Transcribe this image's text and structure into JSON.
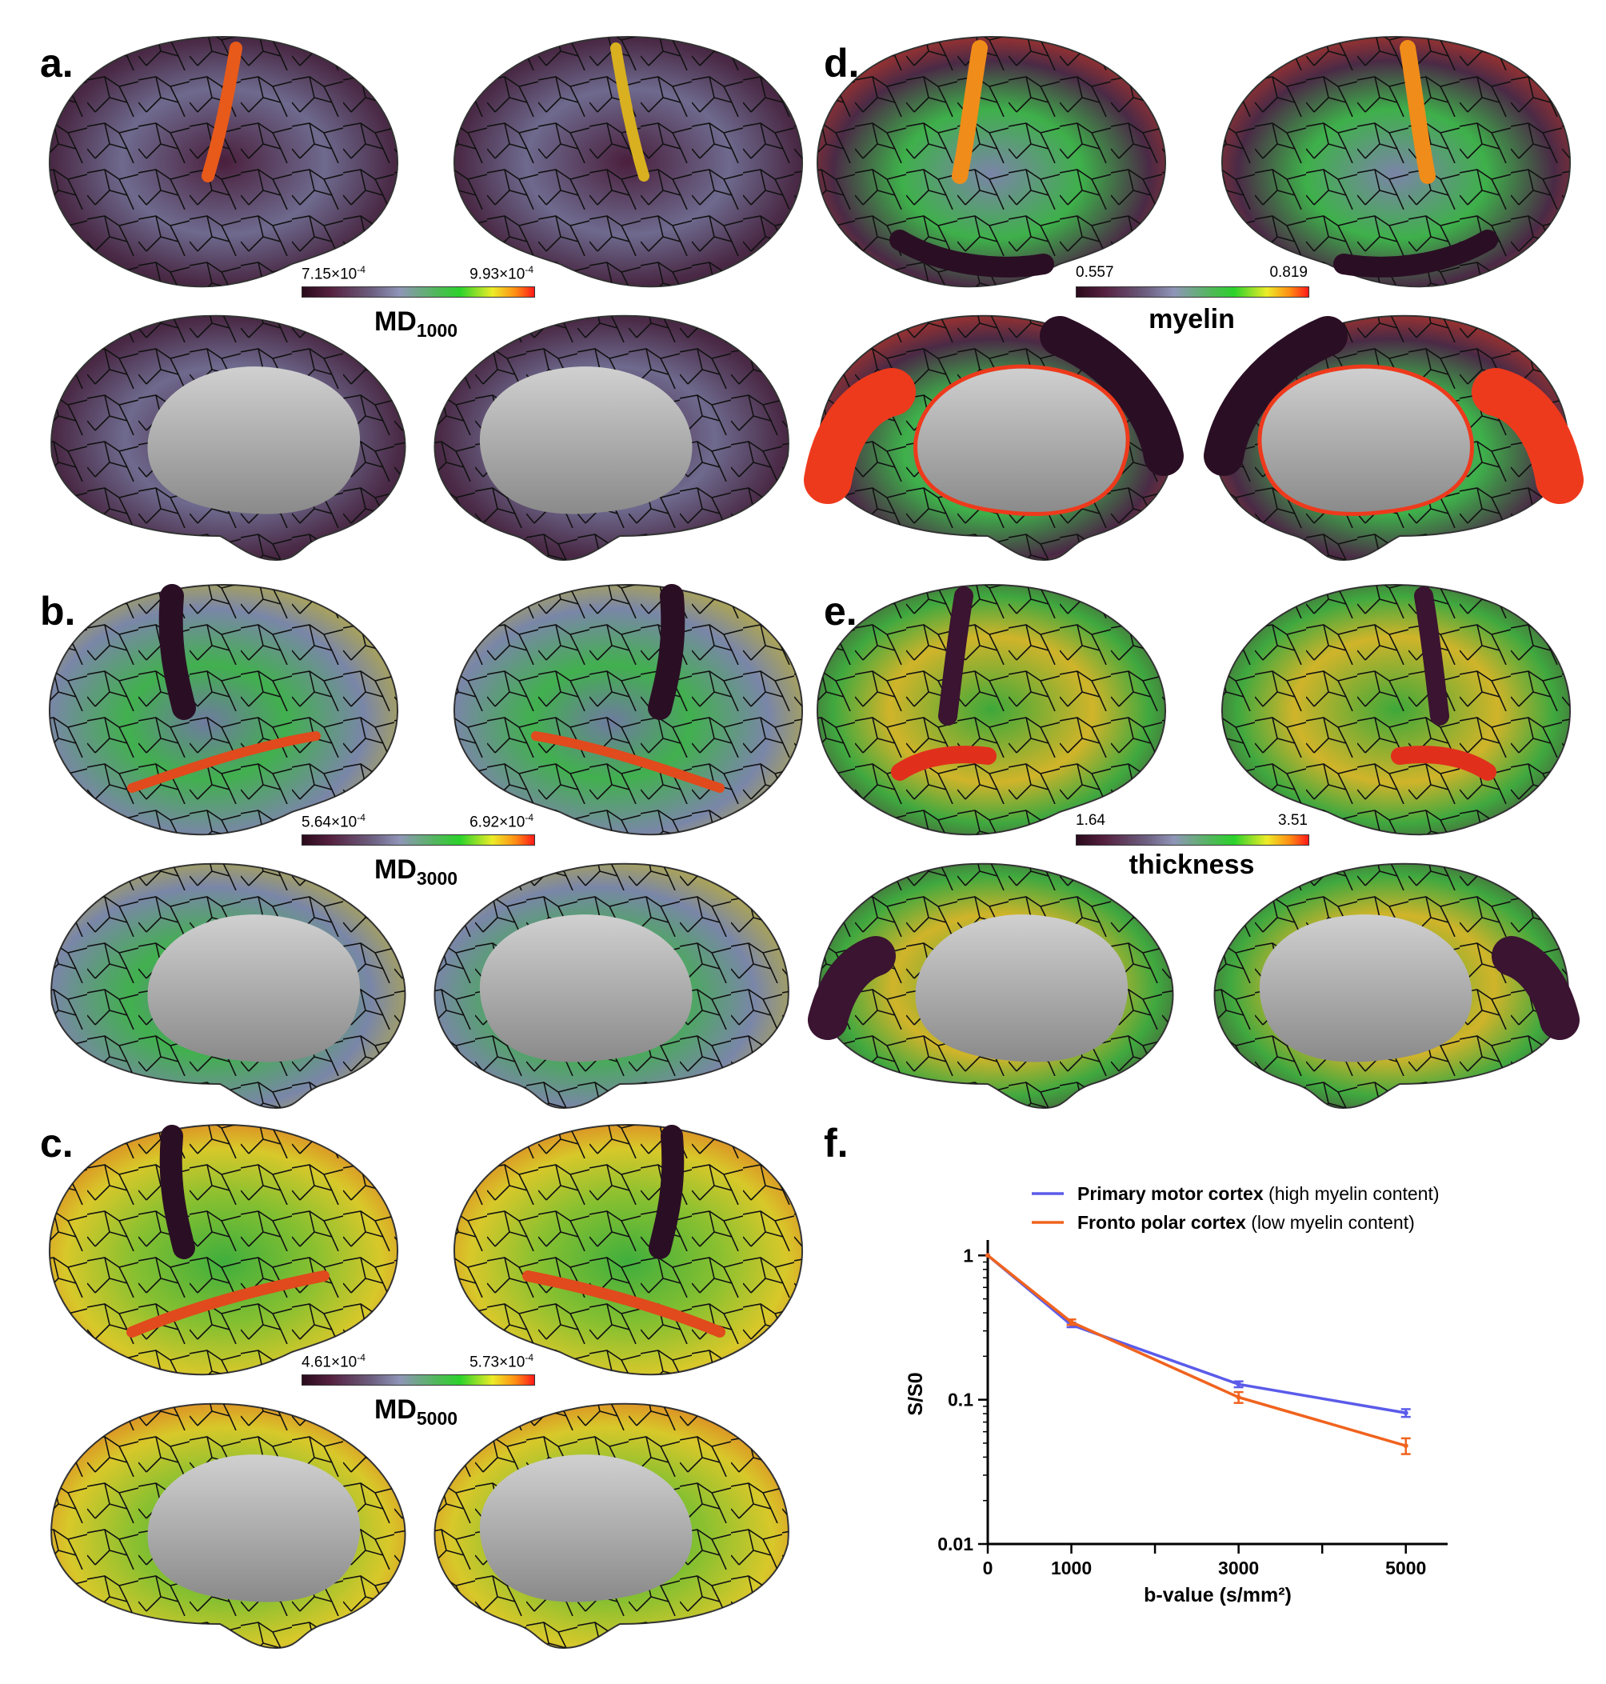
{
  "panels": {
    "a": {
      "label": "a.",
      "cb_min": "7.15×10",
      "cb_min_exp": "-4",
      "cb_max": "9.93×10",
      "cb_max_exp": "-4",
      "title": "MD",
      "title_sub": "1000"
    },
    "b": {
      "label": "b.",
      "cb_min": "5.64×10",
      "cb_min_exp": "-4",
      "cb_max": "6.92×10",
      "cb_max_exp": "-4",
      "title": "MD",
      "title_sub": "3000"
    },
    "c": {
      "label": "c.",
      "cb_min": "4.61×10",
      "cb_min_exp": "-4",
      "cb_max": "5.73×10",
      "cb_max_exp": "-4",
      "title": "MD",
      "title_sub": "5000"
    },
    "d": {
      "label": "d.",
      "cb_min": "0.557",
      "cb_max": "0.819",
      "title": "myelin"
    },
    "e": {
      "label": "e.",
      "cb_min": "1.64",
      "cb_max": "3.51",
      "title": "thickness"
    },
    "f": {
      "label": "f."
    }
  },
  "colors": {
    "motor": "#5b5bea",
    "frontopolar": "#f0631e"
  },
  "chart_data": {
    "type": "line",
    "xlabel": "b-value (s/mm²)",
    "ylabel": "S/S0",
    "x_ticks": [
      "0",
      "1000",
      "3000",
      "5000"
    ],
    "y_ticks": [
      "0.01",
      "0.1",
      "1"
    ],
    "xlim": [
      0,
      5500
    ],
    "ylim": [
      0.01,
      1.2
    ],
    "y_scale": "log",
    "legend_position": "top",
    "series": [
      {
        "name": "Primary motor cortex",
        "name_note": "(high myelin content)",
        "x": [
          0,
          1000,
          3000,
          5000
        ],
        "y": [
          1.0,
          0.33,
          0.128,
          0.081
        ],
        "err": [
          0,
          0.012,
          0.006,
          0.005
        ]
      },
      {
        "name": "Fronto polar cortex",
        "name_note": "(low myelin content)",
        "x": [
          0,
          1000,
          3000,
          5000
        ],
        "y": [
          1.0,
          0.345,
          0.104,
          0.048
        ],
        "err": [
          0,
          0.015,
          0.009,
          0.006
        ]
      }
    ]
  }
}
